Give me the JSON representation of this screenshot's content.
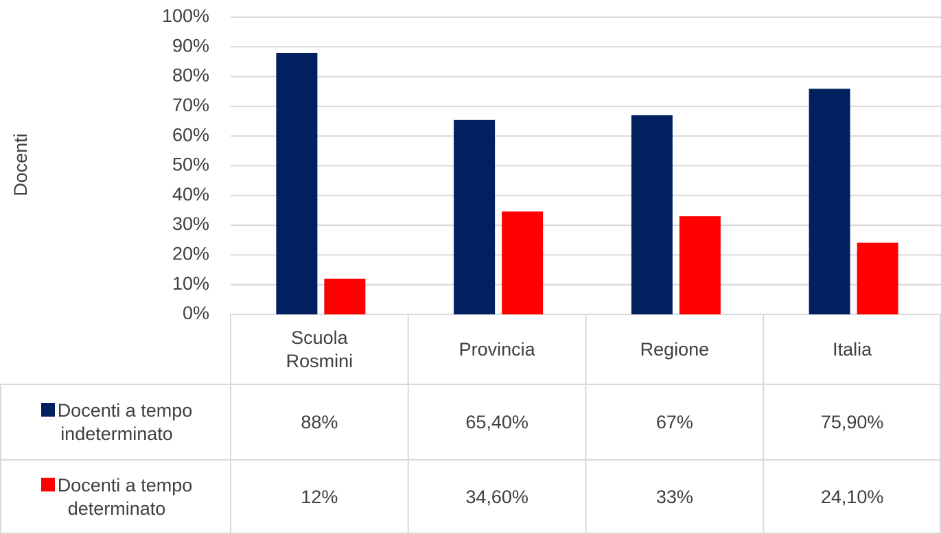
{
  "chart_data": {
    "type": "bar",
    "y_label": "Docenti",
    "categories": [
      "Scuola Rosmini",
      "Provincia",
      "Regione",
      "Italia"
    ],
    "series": [
      {
        "name": "Docenti a tempo indeterminato",
        "color": "#002060",
        "values": [
          88,
          65.4,
          67,
          75.9
        ],
        "value_labels": [
          "88%",
          "65,40%",
          "67%",
          "75,90%"
        ]
      },
      {
        "name": "Docenti a tempo determinato",
        "color": "#ff0000",
        "values": [
          12,
          34.6,
          33,
          24.1
        ],
        "value_labels": [
          "12%",
          "34,60%",
          "33%",
          "24,10%"
        ]
      }
    ],
    "ylim": [
      0,
      100
    ],
    "yticks": [
      {
        "value": 0,
        "label": "0%"
      },
      {
        "value": 10,
        "label": "10%"
      },
      {
        "value": 20,
        "label": "20%"
      },
      {
        "value": 30,
        "label": "30%"
      },
      {
        "value": 40,
        "label": "40%"
      },
      {
        "value": 50,
        "label": "50%"
      },
      {
        "value": 60,
        "label": "60%"
      },
      {
        "value": 70,
        "label": "70%"
      },
      {
        "value": 80,
        "label": "80%"
      },
      {
        "value": 90,
        "label": "90%"
      },
      {
        "value": 100,
        "label": "100%"
      }
    ],
    "grid": true,
    "data_table": true
  }
}
